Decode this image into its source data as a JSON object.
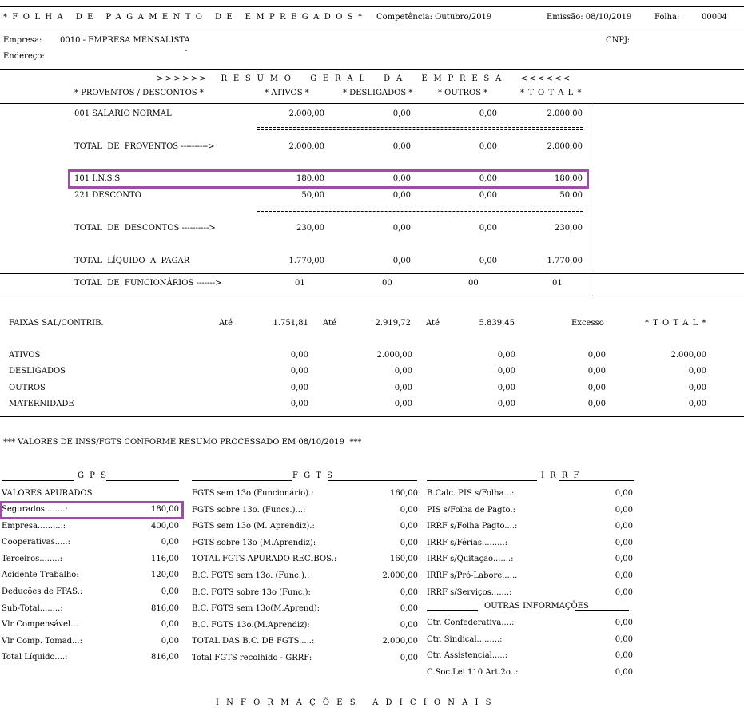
{
  "header": {
    "title": "*FOLHA DE PAGAMENTO DE EMPREGADOS*",
    "competencia": "Competência: Outubro/2019",
    "emissao": "Emissão: 08/10/2019",
    "folha_label": "Folha:",
    "folha_num": "00004"
  },
  "empresa": {
    "label": "Empresa:",
    "value": "0010 - EMPRESA MENSALISTA",
    "dash": "-",
    "endereco_label": "Endereço:",
    "cnpj_label": "CNPJ:"
  },
  "resumo": {
    "title": ">>>>>>   R E S U M O    G E R A L    D A    E M P R E S A    <<<<<<",
    "cols": [
      "* PROVENTOS / DESCONTOS *",
      "* ATIVOS *",
      "* DESLIGADOS *",
      "* OUTROS *",
      "* T O T A L *"
    ],
    "rows": [
      {
        "label": "001 SALARIO NORMAL",
        "v": [
          "2.000,00",
          "0,00",
          "0,00",
          "2.000,00"
        ]
      },
      {
        "label": "TOTAL  DE  PROVENTOS ---------->",
        "v": [
          "2.000,00",
          "0,00",
          "0,00",
          "2.000,00"
        ]
      },
      {
        "label": "101 I.N.S.S",
        "v": [
          "180,00",
          "0,00",
          "0,00",
          "180,00"
        ]
      },
      {
        "label": "221 DESCONTO",
        "v": [
          "50,00",
          "0,00",
          "0,00",
          "50,00"
        ]
      },
      {
        "label": "TOTAL  DE  DESCONTOS ---------->",
        "v": [
          "230,00",
          "0,00",
          "0,00",
          "230,00"
        ]
      },
      {
        "label": "TOTAL  LÍQUIDO  A  PAGAR",
        "v": [
          "1.770,00",
          "0,00",
          "0,00",
          "1.770,00"
        ]
      },
      {
        "label": "TOTAL  DE  FUNCIONÁRIOS ------->",
        "v": [
          "01",
          "00",
          "00",
          "01"
        ]
      }
    ]
  },
  "faixas": {
    "header": "FAIXAS SAL/CONTRIB.",
    "ate1": "Até",
    "f1": "1.751,81",
    "ate2": "Até",
    "f2": "2.919,72",
    "ate3": "Até",
    "f3": "5.839,45",
    "excesso": "Excesso",
    "total": "* T O T A L *",
    "rows": [
      {
        "label": "ATIVOS",
        "v": [
          "0,00",
          "2.000,00",
          "0,00",
          "0,00",
          "2.000,00"
        ]
      },
      {
        "label": "DESLIGADOS",
        "v": [
          "0,00",
          "0,00",
          "0,00",
          "0,00",
          "0,00"
        ]
      },
      {
        "label": "OUTROS",
        "v": [
          "0,00",
          "0,00",
          "0,00",
          "0,00",
          "0,00"
        ]
      },
      {
        "label": "MATERNIDADE",
        "v": [
          "0,00",
          "0,00",
          "0,00",
          "0,00",
          "0,00"
        ]
      }
    ]
  },
  "valores_title": "*** VALORES DE INSS/FGTS CONFORME RESUMO PROCESSADO EM 08/10/2019  ***",
  "gps": {
    "title": "G P S",
    "sub": "VALORES APURADOS",
    "rows": [
      {
        "label": "Segurados........:",
        "v": "180,00"
      },
      {
        "label": "Empresa..........:",
        "v": "400,00"
      },
      {
        "label": "Cooperativas.....:",
        "v": "0,00"
      },
      {
        "label": "Terceiros........:",
        "v": "116,00"
      },
      {
        "label": "Acidente Trabalho:",
        "v": "120,00"
      },
      {
        "label": "Deduções de FPAS.:",
        "v": "0,00"
      },
      {
        "label": "Sub-Total........:",
        "v": "816,00"
      },
      {
        "label": "Vlr Compensável...",
        "v": "0,00"
      },
      {
        "label": "Vlr Comp. Tomad...:",
        "v": "0,00"
      },
      {
        "label": "Total Líquido....:",
        "v": "816,00"
      }
    ]
  },
  "fgts": {
    "title": "F G T S",
    "rows": [
      {
        "label": "FGTS sem 13o (Funcionário).:",
        "v": "160,00"
      },
      {
        "label": "FGTS sobre 13o. (Funcs.)...:",
        "v": "0,00"
      },
      {
        "label": "FGTS sem 13o (M. Aprendiz).:",
        "v": "0,00"
      },
      {
        "label": "FGTS sobre 13o (M.Aprendiz):",
        "v": "0,00"
      },
      {
        "label": "TOTAL FGTS APURADO RECIBOS.:",
        "v": "160,00"
      },
      {
        "label": "B.C. FGTS sem 13o. (Func.).:",
        "v": "2.000,00"
      },
      {
        "label": "B.C. FGTS sobre 13o (Func.):",
        "v": "0,00"
      },
      {
        "label": "B.C. FGTS sem 13o(M.Aprend):",
        "v": "0,00"
      },
      {
        "label": "B.C. FGTS 13o.(M.Aprendiz):",
        "v": "0,00"
      },
      {
        "label": "TOTAL DAS B.C. DE FGTS.....:",
        "v": "2.000,00"
      },
      {
        "label": "Total FGTS recolhido - GRRF:",
        "v": "0,00"
      }
    ]
  },
  "irrf": {
    "title": "I R R F",
    "rows": [
      {
        "label": "B.Calc. PIS s/Folha...:",
        "v": "0,00"
      },
      {
        "label": "PIS s/Folha de Pagto.:",
        "v": "0,00"
      },
      {
        "label": "IRRF s/Folha Pagto....:",
        "v": "0,00"
      },
      {
        "label": "IRRF s/Férias.........:",
        "v": "0,00"
      },
      {
        "label": "IRRF s/Quitação.......:",
        "v": "0,00"
      },
      {
        "label": "IRRF s/Pró-Labore......",
        "v": "0,00"
      },
      {
        "label": "IRRF s/Serviços.......:",
        "v": "0,00"
      }
    ],
    "outras_title": "OUTRAS INFORMAÇÕES",
    "outras": [
      {
        "label": "Ctr. Confederativa....:",
        "v": "0,00"
      },
      {
        "label": "Ctr. Sindical.........:",
        "v": "0,00"
      },
      {
        "label": "Ctr. Assistencial.....:",
        "v": "0,00"
      },
      {
        "label": "C.Soc.Lei 110 Art.2o..:",
        "v": "0,00"
      }
    ]
  },
  "footer_cut": "I N F O R M A Ç Õ E S   A D I C I O N A I S"
}
